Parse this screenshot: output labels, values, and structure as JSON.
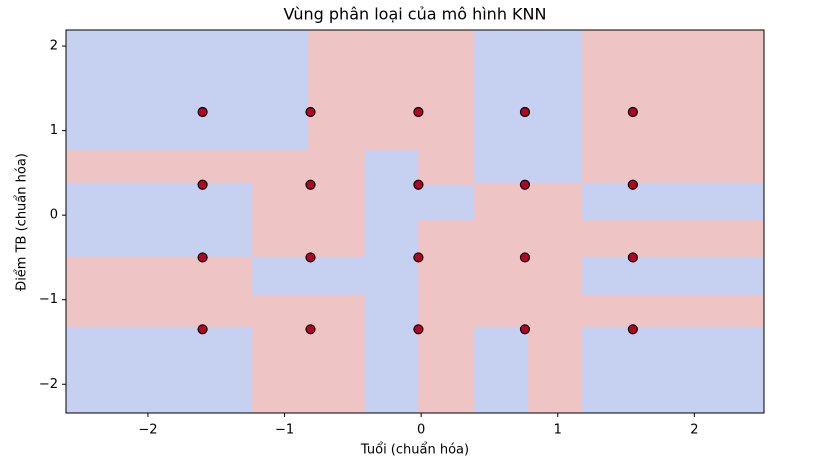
{
  "chart_data": {
    "type": "scatter",
    "title": "Vùng phân loại của mô hình KNN",
    "x_label": "Tuổi (chuẩn hóa)",
    "y_label": "Điểm TB (chuẩn hóa)",
    "xlim": [
      -2.6,
      2.51
    ],
    "ylim": [
      -2.34,
      2.19
    ],
    "xticks": [
      {
        "value": -2,
        "label": "−2"
      },
      {
        "value": -1,
        "label": "−1"
      },
      0,
      1,
      2
    ],
    "yticks": [
      {
        "value": -2,
        "label": "−2"
      },
      {
        "value": -1,
        "label": "−1"
      },
      0,
      1,
      2
    ],
    "color": "#b40426",
    "x": [
      -1.6,
      -0.81,
      -0.02,
      0.76,
      1.55,
      -1.6,
      -0.81,
      -0.02,
      0.76,
      1.55,
      -1.6,
      -0.81,
      -0.02,
      0.76,
      1.55,
      -1.6,
      -0.81,
      -0.02,
      0.76,
      1.55
    ],
    "y": [
      1.22,
      1.22,
      1.22,
      1.22,
      1.22,
      0.36,
      0.36,
      0.36,
      0.36,
      0.36,
      -0.5,
      -0.5,
      -0.5,
      -0.5,
      -0.5,
      -1.35,
      -1.35,
      -1.35,
      -1.35,
      -1.35
    ]
  }
}
